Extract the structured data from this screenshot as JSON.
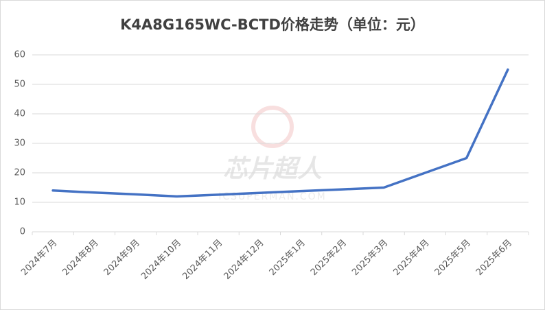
{
  "chart_data": {
    "type": "line",
    "title": "K4A8G165WC-BCTD价格走势（单位：元）",
    "categories": [
      "2024年7月",
      "2024年8月",
      "2024年9月",
      "2024年10月",
      "2024年11月",
      "2024年12月",
      "2025年1月",
      "2025年2月",
      "2025年3月",
      "2025年4月",
      "2025年5月",
      "2025年6月"
    ],
    "values": [
      14,
      13.3,
      12.7,
      12,
      12.6,
      13.2,
      13.8,
      14.4,
      15,
      20,
      25,
      55
    ],
    "color": "#4472c4",
    "ylim": [
      0,
      60
    ],
    "yticks": [
      0,
      10,
      20,
      30,
      40,
      50,
      60
    ],
    "grid": true,
    "watermark": "芯片超人",
    "watermark_url": "ICSUPERMAN.COM"
  }
}
